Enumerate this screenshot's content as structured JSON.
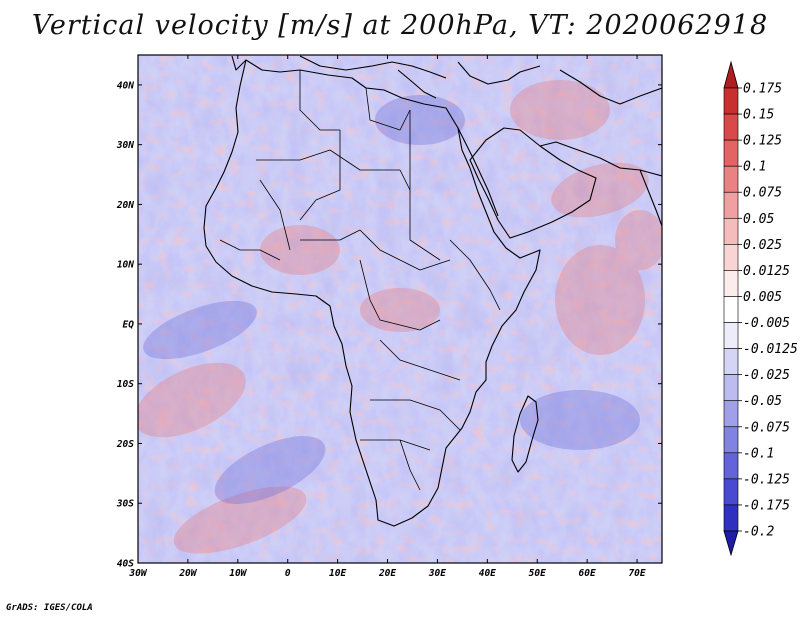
{
  "title": "Vertical velocity [m/s] at 200hPa, VT: 2020062918",
  "credit": "GrADS: IGES/COLA",
  "map": {
    "lon_range": [
      -30,
      75
    ],
    "lat_range": [
      -40,
      45
    ],
    "lon_ticks": [
      "30W",
      "20W",
      "10W",
      "0",
      "10E",
      "20E",
      "30E",
      "40E",
      "50E",
      "60E",
      "70E"
    ],
    "lat_ticks": [
      "40N",
      "30N",
      "20N",
      "10N",
      "EQ",
      "10S",
      "20S",
      "30S",
      "40S"
    ],
    "field": "vertical velocity at 200hPa"
  },
  "colorbar": {
    "labels": [
      "0.175",
      "0.15",
      "0.125",
      "0.1",
      "0.075",
      "0.05",
      "0.025",
      "0.0125",
      "0.005",
      "-0.005",
      "-0.0125",
      "-0.025",
      "-0.05",
      "-0.075",
      "-0.1",
      "-0.125",
      "-0.175",
      "-0.2"
    ],
    "colors": [
      "#b01c20",
      "#c8302f",
      "#d8494a",
      "#e26464",
      "#ea8283",
      "#f0a0a0",
      "#f5bcbc",
      "#f8d4d4",
      "#fcecec",
      "#ffffff",
      "#ececfa",
      "#d4d4f5",
      "#bcbcf0",
      "#a0a0ea",
      "#8282e2",
      "#6464da",
      "#4a4ad0",
      "#3030c0",
      "#1c1ca8"
    ]
  }
}
